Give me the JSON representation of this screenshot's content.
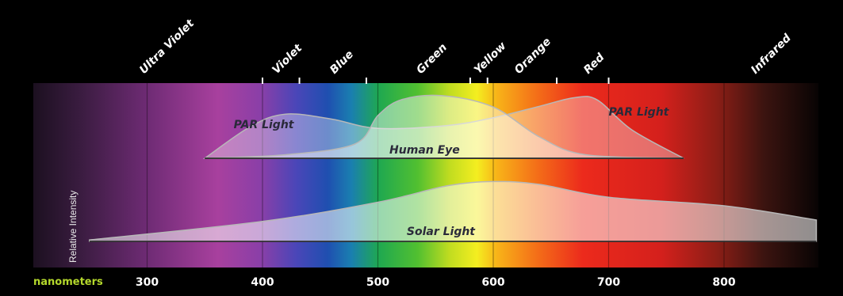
{
  "chart_data": {
    "type": "area",
    "title": "",
    "xlabel": "nanometers",
    "ylabel": "Relative Intensity",
    "xlim": [
      200,
      890
    ],
    "x_ticks": [
      300,
      400,
      500,
      600,
      700,
      800
    ],
    "bands": [
      {
        "label": "Ultra Violet",
        "at": 300
      },
      {
        "label": "Violet",
        "at": 415
      },
      {
        "label": "Blue",
        "at": 465
      },
      {
        "label": "Green",
        "at": 540
      },
      {
        "label": "Yellow",
        "at": 590
      },
      {
        "label": "Orange",
        "at": 625
      },
      {
        "label": "Red",
        "at": 685
      },
      {
        "label": "Infrared",
        "at": 830
      }
    ],
    "band_ticks": [
      400,
      432,
      490,
      580,
      595,
      655,
      700
    ],
    "series": [
      {
        "name": "Solar Light",
        "x": [
          250,
          400,
          500,
          560,
          600,
          640,
          700,
          800,
          880
        ],
        "y": [
          0.02,
          0.28,
          0.55,
          0.78,
          0.84,
          0.8,
          0.62,
          0.5,
          0.3
        ]
      },
      {
        "name": "PAR Light",
        "x": [
          350,
          390,
          420,
          460,
          500,
          560,
          600,
          640,
          670,
          690,
          720,
          765
        ],
        "y": [
          0.0,
          0.45,
          0.62,
          0.55,
          0.42,
          0.46,
          0.57,
          0.73,
          0.85,
          0.82,
          0.4,
          0.0
        ]
      },
      {
        "name": "Human Eye",
        "x": [
          350,
          420,
          480,
          500,
          520,
          555,
          600,
          640,
          680,
          765
        ],
        "y": [
          0.0,
          0.05,
          0.2,
          0.6,
          0.82,
          0.88,
          0.72,
          0.3,
          0.05,
          0.0
        ]
      }
    ],
    "colors": {
      "solar_fill": "#ffffff",
      "par_fill": "#ffffff",
      "eye_fill": "#ffffff",
      "outline": "#b8b8b8"
    },
    "grid": true,
    "legend": "none"
  }
}
